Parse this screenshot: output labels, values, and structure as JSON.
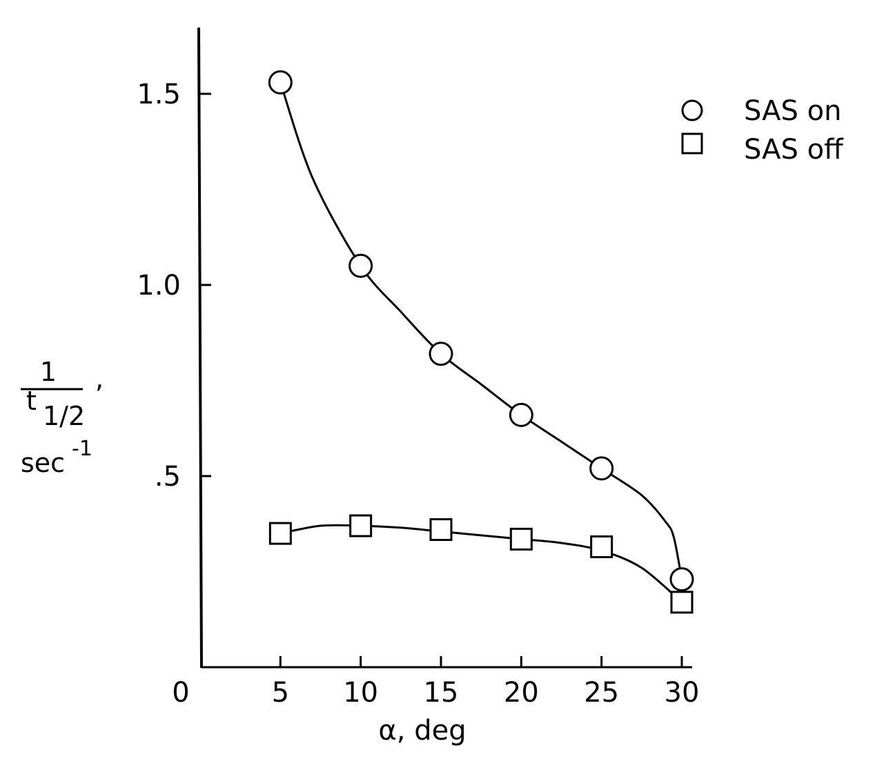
{
  "chart_data": {
    "type": "line",
    "title": "",
    "xlabel": "α, deg",
    "ylabel": {
      "numerator": "1",
      "denominator_base": "t",
      "denominator_subscript": "1/2",
      "separator": ",",
      "unit_base": "sec",
      "unit_exponent": "-1"
    },
    "xlim": [
      0,
      30
    ],
    "ylim": [
      0,
      1.5
    ],
    "x_ticks": [
      {
        "value": 0,
        "label": "0"
      },
      {
        "value": 5,
        "label": "5"
      },
      {
        "value": 10,
        "label": "10"
      },
      {
        "value": 15,
        "label": "15"
      },
      {
        "value": 20,
        "label": "20"
      },
      {
        "value": 25,
        "label": "25"
      },
      {
        "value": 30,
        "label": "30"
      }
    ],
    "y_ticks": [
      {
        "value": 0.5,
        "label": ".5"
      },
      {
        "value": 1.0,
        "label": "1.0"
      },
      {
        "value": 1.5,
        "label": "1.5"
      }
    ],
    "grid": false,
    "legend_position": "top-right",
    "series": [
      {
        "name": "SAS on",
        "marker": "circle",
        "x": [
          5,
          10,
          15,
          20,
          25,
          30
        ],
        "y": [
          1.53,
          1.05,
          0.82,
          0.66,
          0.52,
          0.23
        ],
        "curve_x": [
          5,
          7,
          10,
          12.5,
          15,
          17.5,
          20,
          22.5,
          25,
          27.5,
          29,
          29.5,
          30
        ],
        "curve_y": [
          1.53,
          1.28,
          1.05,
          0.93,
          0.82,
          0.74,
          0.66,
          0.59,
          0.52,
          0.45,
          0.38,
          0.34,
          0.23
        ]
      },
      {
        "name": "SAS off",
        "marker": "square",
        "x": [
          5,
          10,
          15,
          20,
          25,
          30
        ],
        "y": [
          0.35,
          0.37,
          0.36,
          0.335,
          0.315,
          0.17
        ],
        "curve_x": [
          5,
          7.5,
          10,
          12.5,
          15,
          17.5,
          20,
          22.5,
          25,
          27.5,
          30
        ],
        "curve_y": [
          0.35,
          0.37,
          0.37,
          0.365,
          0.355,
          0.345,
          0.335,
          0.325,
          0.305,
          0.26,
          0.17
        ]
      }
    ]
  }
}
